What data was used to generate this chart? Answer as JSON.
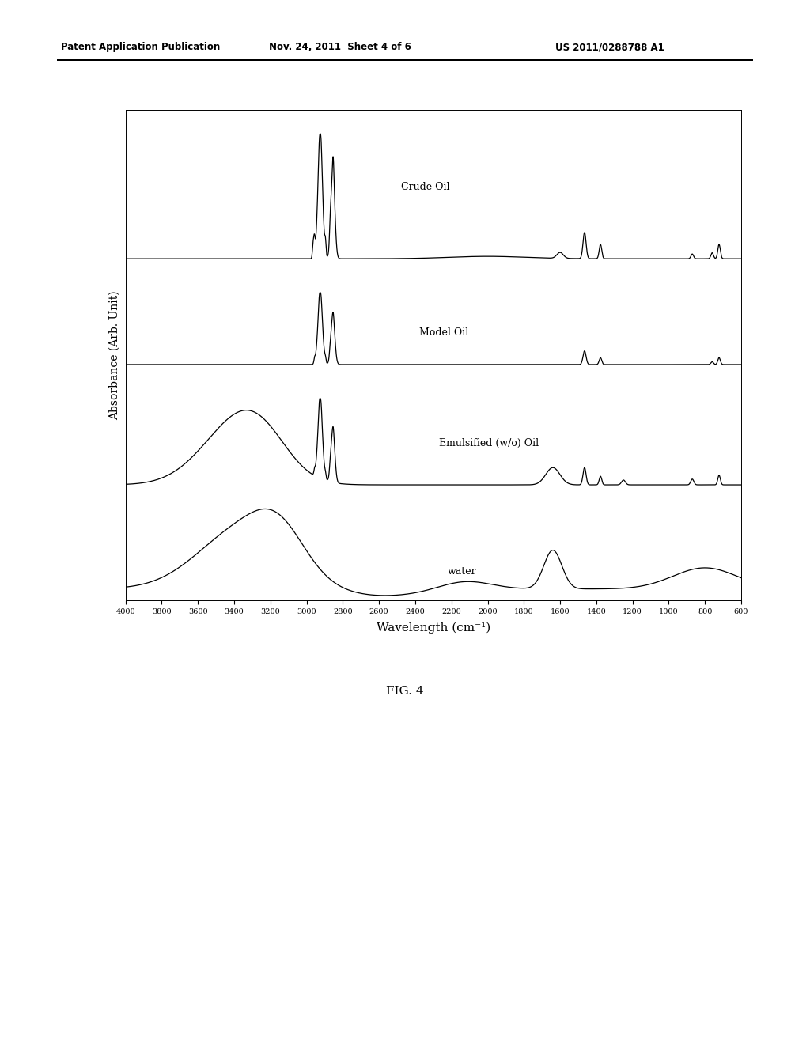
{
  "xlabel": "Wavelength (cm⁻¹)",
  "ylabel": "Absorbance (Arb. Unit)",
  "header_left": "Patent Application Publication",
  "header_center": "Nov. 24, 2011  Sheet 4 of 6",
  "header_right": "US 2011/0288788 A1",
  "x_ticks": [
    4000,
    3800,
    3600,
    3400,
    3200,
    3000,
    2800,
    2600,
    2400,
    2200,
    2000,
    1800,
    1600,
    1400,
    1200,
    1000,
    800,
    600
  ],
  "background_color": "#ffffff",
  "line_color": "#000000",
  "fig_label": "FIG. 4"
}
